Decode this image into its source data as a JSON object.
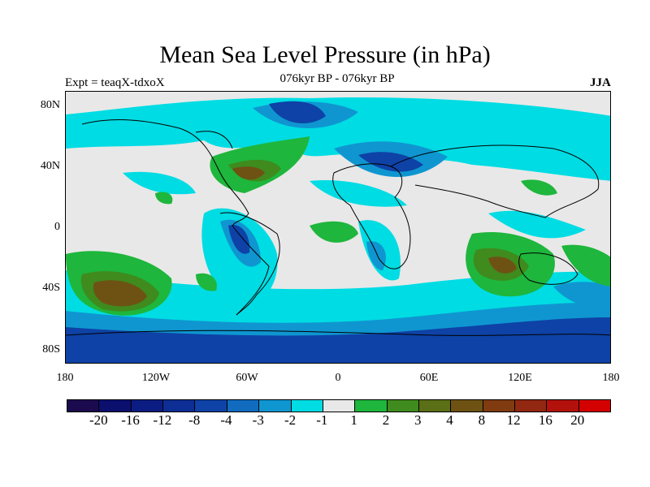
{
  "title": "Mean Sea Level Pressure (in hPa)",
  "subtitle": "076kyr BP - 076kyr BP",
  "expt": "Expt = teaqX-tdxoX",
  "season": "JJA",
  "lat_labels": [
    "80N",
    "40N",
    "0",
    "40S",
    "80S"
  ],
  "lon_labels": [
    "180",
    "120W",
    "60W",
    "0",
    "60E",
    "120E",
    "180"
  ],
  "colorbar": {
    "colors": [
      "#1c0a4e",
      "#0b0f6e",
      "#0b1d82",
      "#0d2e94",
      "#0e42a6",
      "#116cc0",
      "#0f96d0",
      "#00dce3",
      "#e8e8e8",
      "#1eb63c",
      "#3f8b1e",
      "#5b6f17",
      "#6e5214",
      "#803b10",
      "#922811",
      "#b3120c",
      "#d40000"
    ],
    "labels": [
      "-20",
      "-16",
      "-12",
      "-8",
      "-4",
      "-3",
      "-2",
      "-1",
      "1",
      "2",
      "3",
      "4",
      "8",
      "12",
      "16",
      "20"
    ]
  }
}
